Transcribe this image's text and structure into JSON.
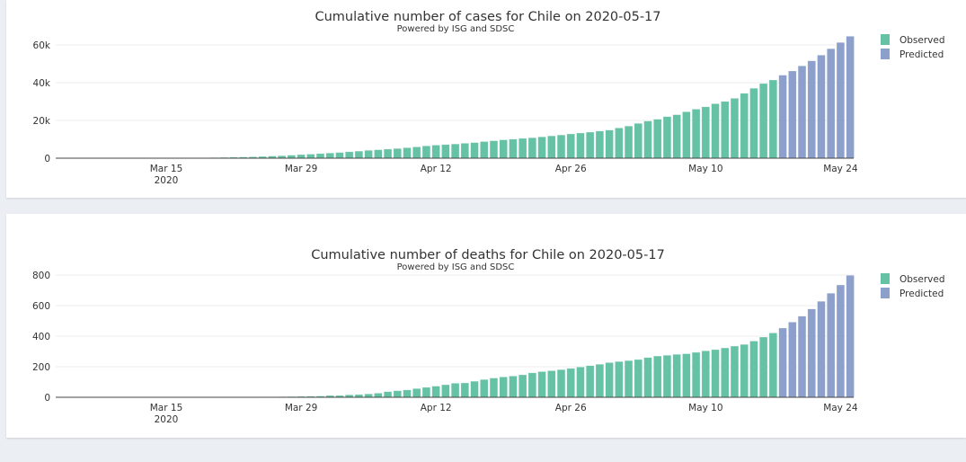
{
  "colors": {
    "observed": "#66c2a5",
    "predicted": "#8da0cb"
  },
  "chart_data": [
    {
      "type": "bar",
      "title": "Cumulative number of cases for Chile on 2020-05-17",
      "subtitle": "Powered by ISG and SDSC",
      "start_date": "2020-03-04",
      "x_ticks": [
        "Mar 15",
        "Mar 29",
        "Apr 12",
        "Apr 26",
        "May 10",
        "May 24"
      ],
      "x_tick_sub": "2020",
      "y_ticks": [
        {
          "v": 0,
          "label": "0"
        },
        {
          "v": 20000,
          "label": "20k"
        },
        {
          "v": 40000,
          "label": "40k"
        },
        {
          "v": 60000,
          "label": "60k"
        }
      ],
      "ylim": [
        0,
        60000
      ],
      "legend": [
        "Observed",
        "Predicted"
      ],
      "legend_position": "top-right",
      "observed": [
        1,
        3,
        4,
        5,
        7,
        10,
        13,
        17,
        23,
        33,
        43,
        61,
        75,
        156,
        201,
        238,
        342,
        434,
        537,
        632,
        746,
        922,
        1142,
        1306,
        1610,
        1909,
        2139,
        2449,
        2738,
        3031,
        3404,
        3737,
        4161,
        4471,
        4815,
        5116,
        5546,
        5972,
        6501,
        6927,
        7213,
        7525,
        7917,
        8273,
        8807,
        9252,
        9730,
        10088,
        10507,
        10832,
        11296,
        11812,
        12306,
        12858,
        13331,
        13813,
        14365,
        14885,
        16023,
        17008,
        18435,
        19663,
        20643,
        22016,
        23048,
        24581,
        25972,
        27219,
        28866,
        30063,
        31721,
        34381,
        37040,
        39542,
        41428
      ],
      "predicted": [
        44000,
        46200,
        48900,
        51600,
        54600,
        58000,
        61300,
        64600
      ]
    },
    {
      "type": "bar",
      "title": "Cumulative number of deaths for Chile on 2020-05-17",
      "subtitle": "Powered by ISG and SDSC",
      "start_date": "2020-03-04",
      "x_ticks": [
        "Mar 15",
        "Mar 29",
        "Apr 12",
        "Apr 26",
        "May 10",
        "May 24"
      ],
      "x_tick_sub": "2020",
      "y_ticks": [
        {
          "v": 0,
          "label": "0"
        },
        {
          "v": 200,
          "label": "200"
        },
        {
          "v": 400,
          "label": "400"
        },
        {
          "v": 600,
          "label": "600"
        },
        {
          "v": 800,
          "label": "800"
        }
      ],
      "ylim": [
        0,
        800
      ],
      "legend": [
        "Observed",
        "Predicted"
      ],
      "legend_position": "top-right",
      "observed": [
        0,
        0,
        0,
        0,
        0,
        0,
        0,
        0,
        0,
        0,
        0,
        0,
        0,
        0,
        0,
        0,
        0,
        0,
        1,
        1,
        2,
        3,
        3,
        4,
        5,
        6,
        7,
        8,
        12,
        12,
        16,
        18,
        22,
        27,
        37,
        43,
        48,
        57,
        65,
        73,
        82,
        92,
        94,
        105,
        116,
        126,
        133,
        139,
        147,
        160,
        168,
        174,
        181,
        189,
        198,
        207,
        216,
        227,
        234,
        240,
        247,
        260,
        270,
        275,
        281,
        285,
        294,
        304,
        312,
        323,
        335,
        346,
        368,
        394,
        421
      ],
      "predicted": [
        453,
        492,
        531,
        578,
        628,
        681,
        735,
        798
      ]
    }
  ]
}
